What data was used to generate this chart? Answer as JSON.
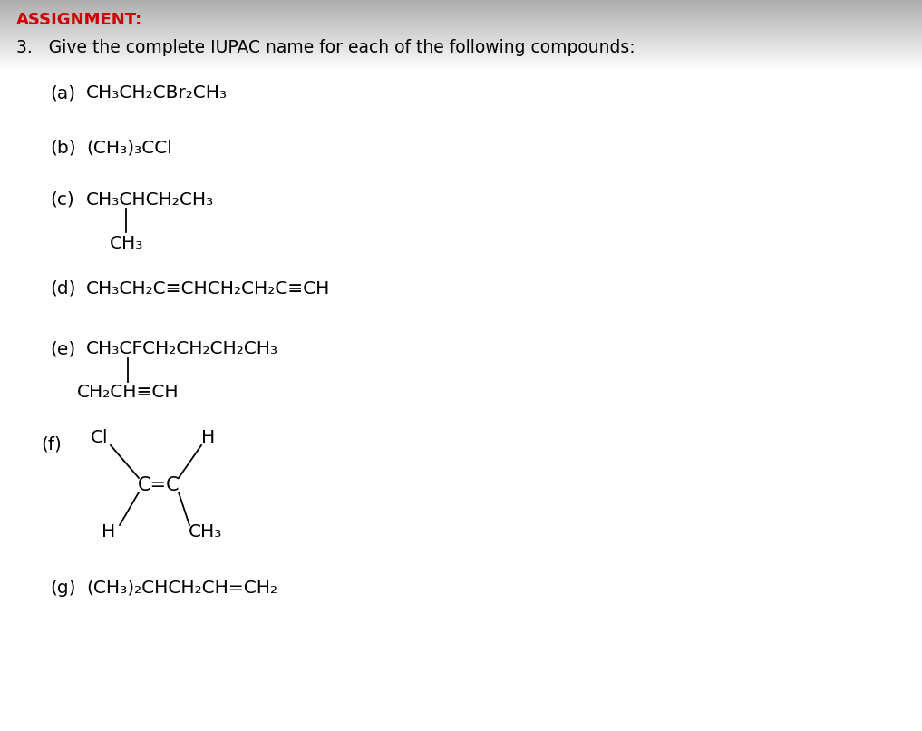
{
  "assignment_label": "ASSIGNMENT:",
  "assignment_color": "#cc0000",
  "header_text": "3.   Give the complete IUPAC name for each of the following compounds:",
  "items": [
    {
      "label": "(a)",
      "type": "inline",
      "formula": "CH₃CH₂CBr₂CH₃"
    },
    {
      "label": "(b)",
      "type": "inline",
      "formula": "(CH₃)₃CCl"
    },
    {
      "label": "(c)",
      "type": "branched",
      "main": "CH₃CHCH₂CH₃",
      "branch": "CH₃"
    },
    {
      "label": "(d)",
      "type": "inline",
      "formula": "CH₃CH₂C≡CHCH₂CH₂C≡CH"
    },
    {
      "label": "(e)",
      "type": "branched",
      "main": "CH₃CFCH₂CH₂CH₂CH₃",
      "branch": "CH₂CH≡CH"
    },
    {
      "label": "(f)",
      "type": "structural",
      "top_left": "Cl",
      "top_right": "H",
      "bottom_left": "H",
      "bottom_right": "CH₃",
      "center": "C=C"
    },
    {
      "label": "(g)",
      "type": "inline",
      "formula": "(CH₃)₂CHCH₂CH=CH₂"
    }
  ],
  "main_fontsize": 14.5,
  "header_bg_color": "#b0b0b0",
  "header_gradient_top": "#a8a8a8",
  "header_gradient_bottom": "#d0d0d0"
}
